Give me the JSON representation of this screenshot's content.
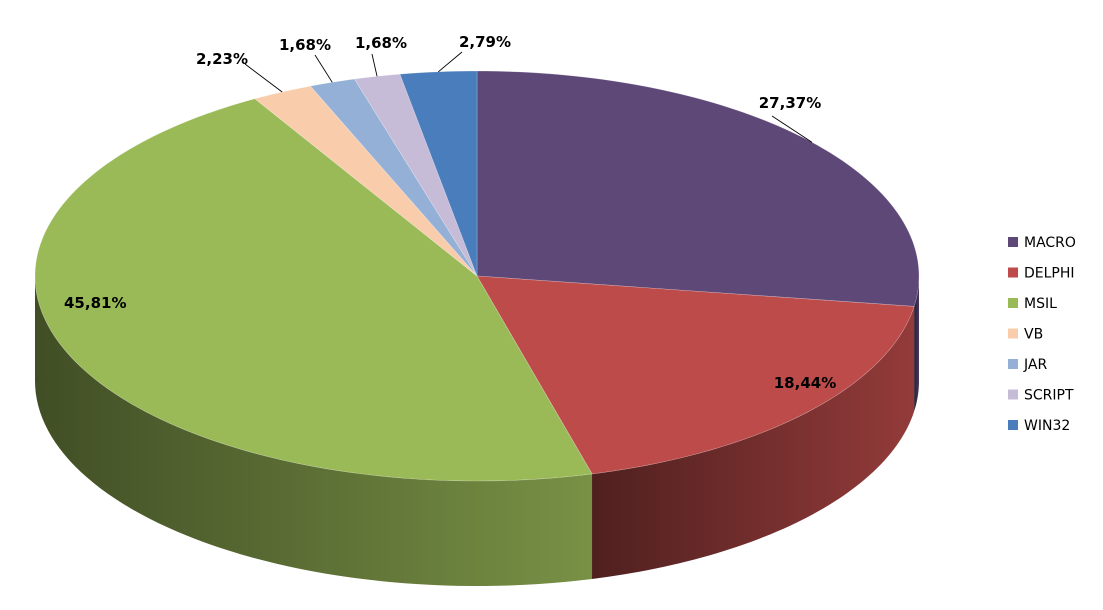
{
  "chart_data": {
    "type": "pie",
    "style": "3d",
    "start_angle_deg": 90,
    "direction": "clockwise",
    "legend_position": "right",
    "slices": [
      {
        "name": "MACRO",
        "value": 27.37,
        "label": "27,37%",
        "color": "#5e4878"
      },
      {
        "name": "DELPHI",
        "value": 18.44,
        "label": "18,44%",
        "color": "#bd4b4a"
      },
      {
        "name": "MSIL",
        "value": 45.81,
        "label": "45,81%",
        "color": "#9aba58"
      },
      {
        "name": "VB",
        "value": 2.23,
        "label": "2,23%",
        "color": "#f9cdac"
      },
      {
        "name": "JAR",
        "value": 1.68,
        "label": "1,68%",
        "color": "#94b0d6"
      },
      {
        "name": "SCRIPT",
        "value": 1.68,
        "label": "1,68%",
        "color": "#c6bcd8"
      },
      {
        "name": "WIN32",
        "value": 2.79,
        "label": "2,79%",
        "color": "#4a7dbb"
      }
    ]
  }
}
